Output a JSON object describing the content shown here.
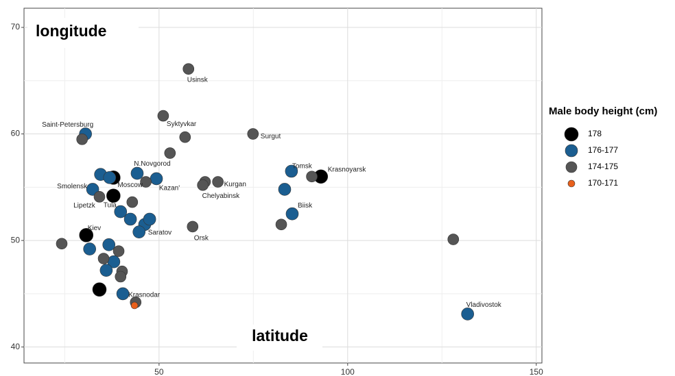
{
  "chart_data": {
    "type": "scatter",
    "x_label": "latitude",
    "y_label": "longitude",
    "legend_title": "Male body height (cm)",
    "xlim": [
      14.2,
      151.5
    ],
    "ylim": [
      38.5,
      71.8
    ],
    "xticks": [
      50,
      100,
      150
    ],
    "yticks": [
      40,
      50,
      60,
      70
    ],
    "x_minor_grid": [
      25,
      75,
      125
    ],
    "y_minor_grid": [
      45,
      55,
      65
    ],
    "grid": true,
    "series": [
      {
        "name": "178",
        "color": "#000000",
        "x": [
          37.9,
          37.9,
          30.7,
          34.2,
          92.9
        ],
        "y": [
          55.9,
          54.2,
          50.5,
          45.4,
          56.0
        ],
        "labels": [
          "Moscow",
          "Tula",
          "Kiev",
          null,
          "Krasnoyarsk"
        ]
      },
      {
        "name": "176-177",
        "color": "#1b5e91",
        "x": [
          30.5,
          34.5,
          36.9,
          32.4,
          44.2,
          49.3,
          39.8,
          42.4,
          46.2,
          47.5,
          44.7,
          36.7,
          31.6,
          38.0,
          36.0,
          40.4,
          85.1,
          83.3,
          85.3,
          131.8
        ],
        "y": [
          60.0,
          56.2,
          55.9,
          54.8,
          56.3,
          55.8,
          52.7,
          52.0,
          51.5,
          52.0,
          50.8,
          49.6,
          49.2,
          48.0,
          47.2,
          45.0,
          56.5,
          54.8,
          52.5,
          43.1
        ],
        "labels": [
          "Saint-Petersburg",
          null,
          null,
          "Smolensk",
          "N.Novgorod",
          "Kazan'",
          null,
          null,
          null,
          null,
          "Saratov",
          null,
          null,
          null,
          null,
          "Krasnodar",
          "Tomsk",
          null,
          "Biisk",
          "Vladivostok"
        ]
      },
      {
        "name": "174-175",
        "color": "#555555",
        "x": [
          57.8,
          51.1,
          56.9,
          52.9,
          74.9,
          29.6,
          62.2,
          65.6,
          61.6,
          46.5,
          34.2,
          42.9,
          58.9,
          24.2,
          39.3,
          35.3,
          40.2,
          39.8,
          43.8,
          90.5,
          82.4,
          128.0
        ],
        "y": [
          66.1,
          61.7,
          59.7,
          58.2,
          60.0,
          59.5,
          55.5,
          55.5,
          55.2,
          55.5,
          54.1,
          53.6,
          51.3,
          49.7,
          49.0,
          48.3,
          47.1,
          46.6,
          44.2,
          56.0,
          51.5,
          50.1
        ],
        "labels": [
          "Usinsk",
          "Syktyvkar",
          null,
          null,
          "Surgut",
          null,
          null,
          "Kurgan",
          "Chelyabinsk",
          null,
          "Lipetzk",
          null,
          "Orsk",
          null,
          null,
          null,
          null,
          null,
          null,
          null,
          null,
          null
        ]
      },
      {
        "name": "170-171",
        "color": "#e8601c",
        "x": [
          43.5
        ],
        "y": [
          43.9
        ],
        "labels": [
          null
        ]
      }
    ]
  }
}
